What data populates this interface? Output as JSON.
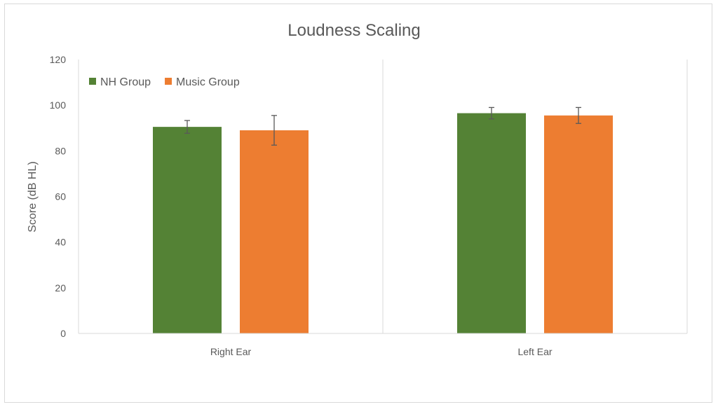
{
  "chart_data": {
    "type": "bar",
    "title": "Loudness Scaling",
    "xlabel": "",
    "ylabel": "Score (dB HL)",
    "categories": [
      "Right Ear",
      "Left Ear"
    ],
    "ylim": [
      0,
      120
    ],
    "yticks": [
      0,
      20,
      40,
      60,
      80,
      100,
      120
    ],
    "grid": false,
    "legend_position": "top-left",
    "series": [
      {
        "name": "NH Group",
        "color": "#548235",
        "values": [
          90.5,
          96.5
        ],
        "errors": [
          2.8,
          2.5
        ]
      },
      {
        "name": "Music Group",
        "color": "#ED7D31",
        "values": [
          89,
          95.5
        ],
        "errors": [
          6.5,
          3.5
        ]
      }
    ]
  }
}
